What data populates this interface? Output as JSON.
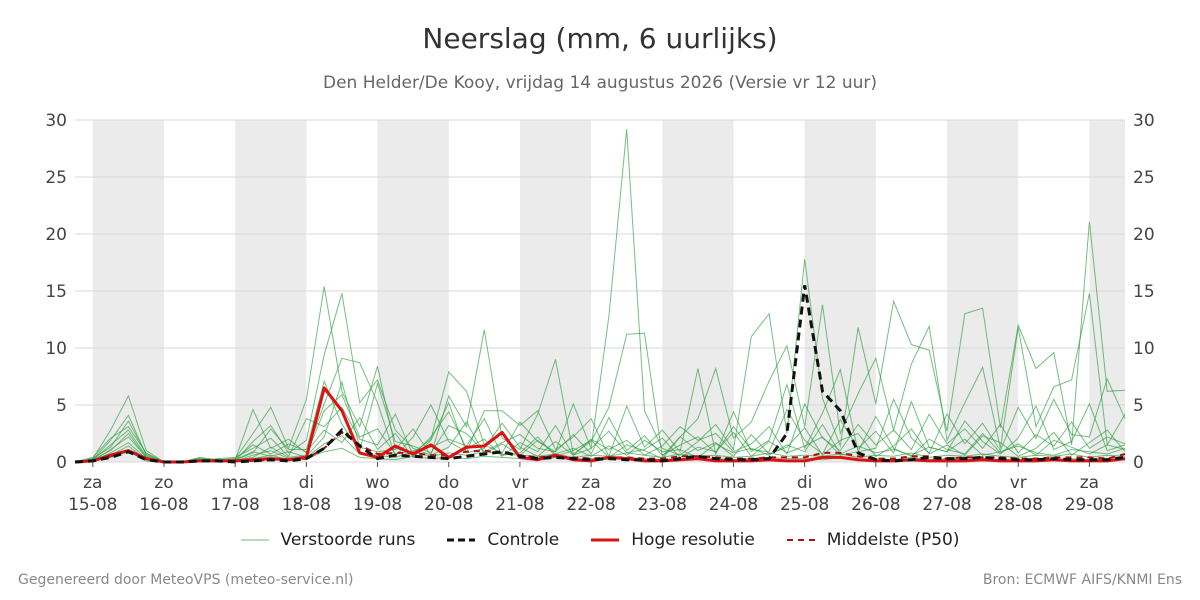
{
  "header": {
    "title": "Neerslag (mm, 6 uurlijks)",
    "subtitle": "Den Helder/De Kooy, vrijdag 14 augustus 2026 (Versie vr 12 uur)"
  },
  "footer": {
    "left": "Gegenereerd door MeteoVPS (meteo-service.nl)",
    "right": "Bron: ECMWF AIFS/KNMI Ens"
  },
  "legend": [
    {
      "key": "ensemble",
      "label": "Verstoorde runs"
    },
    {
      "key": "control",
      "label": "Controle"
    },
    {
      "key": "hires",
      "label": "Hoge resolutie"
    },
    {
      "key": "median",
      "label": "Middelste (P50)"
    }
  ],
  "colors": {
    "ensemble": "#2a9d3a",
    "control": "#111111",
    "hires": "#dd1111",
    "median": "#aa1111",
    "weekend_band": "#ebebeb",
    "grid": "#d8d8d8"
  },
  "chart_data": {
    "type": "line",
    "x_unit": "days since 15-08 00:00, 6-hourly steps",
    "xlim": [
      -0.25,
      14.5
    ],
    "ylim": [
      0,
      30
    ],
    "y_ticks": [
      0,
      5,
      10,
      15,
      20,
      25,
      30
    ],
    "grid": true,
    "legend_position": "bottom",
    "x_ticks": [
      {
        "day": "za",
        "date": "15-08"
      },
      {
        "day": "zo",
        "date": "16-08"
      },
      {
        "day": "ma",
        "date": "17-08"
      },
      {
        "day": "di",
        "date": "18-08"
      },
      {
        "day": "wo",
        "date": "19-08"
      },
      {
        "day": "do",
        "date": "20-08"
      },
      {
        "day": "vr",
        "date": "21-08"
      },
      {
        "day": "za",
        "date": "22-08"
      },
      {
        "day": "zo",
        "date": "23-08"
      },
      {
        "day": "ma",
        "date": "24-08"
      },
      {
        "day": "di",
        "date": "25-08"
      },
      {
        "day": "wo",
        "date": "26-08"
      },
      {
        "day": "do",
        "date": "27-08"
      },
      {
        "day": "vr",
        "date": "28-08"
      },
      {
        "day": "za",
        "date": "29-08"
      }
    ],
    "shaded_bands": [
      [
        0,
        1
      ],
      [
        2,
        3
      ],
      [
        4,
        5
      ],
      [
        6,
        7
      ],
      [
        8,
        9
      ],
      [
        10,
        11
      ],
      [
        12,
        13
      ],
      [
        14,
        14.5
      ]
    ],
    "series": [
      {
        "name": "Hoge resolutie",
        "role": "hires",
        "x": [
          -0.25,
          0,
          0.25,
          0.5,
          0.75,
          1,
          1.25,
          1.5,
          1.75,
          2,
          2.25,
          2.5,
          2.75,
          3,
          3.25,
          3.5,
          3.75,
          4,
          4.25,
          4.5,
          4.75,
          5,
          5.25,
          5.5,
          5.75,
          6,
          6.25,
          6.5,
          6.75,
          7,
          7.25,
          7.5,
          7.75,
          8,
          8.25,
          8.5,
          8.75,
          9,
          9.25,
          9.5,
          9.75,
          10,
          10.25,
          10.5,
          10.75,
          11,
          11.25,
          11.5,
          11.75,
          12,
          12.25,
          12.5,
          12.75,
          13,
          13.25,
          13.5,
          13.75,
          14,
          14.25,
          14.5
        ],
        "values": [
          0,
          0.1,
          0.6,
          1.0,
          0.3,
          0,
          0,
          0.1,
          0.1,
          0.1,
          0.2,
          0.3,
          0.2,
          0.4,
          6.5,
          4.5,
          0.8,
          0.4,
          1.4,
          0.7,
          1.5,
          0.4,
          1.3,
          1.4,
          2.6,
          0.4,
          0.2,
          0.6,
          0.2,
          0.1,
          0.4,
          0.3,
          0.1,
          0.1,
          0.2,
          0.3,
          0.1,
          0.1,
          0.1,
          0.2,
          0.1,
          0.1,
          0.4,
          0.4,
          0.2,
          0.1,
          0.1,
          0.2,
          0.1,
          0.1,
          0.1,
          0.2,
          0.1,
          0.1,
          0.1,
          0.2,
          0.1,
          0.1,
          0.1,
          0.3
        ]
      },
      {
        "name": "Controle",
        "role": "control",
        "x": [
          -0.25,
          0,
          0.25,
          0.5,
          0.75,
          1,
          1.25,
          1.5,
          1.75,
          2,
          2.25,
          2.5,
          2.75,
          3,
          3.25,
          3.5,
          3.75,
          4,
          4.25,
          4.5,
          4.75,
          5,
          5.25,
          5.5,
          5.75,
          6,
          6.25,
          6.5,
          6.75,
          7,
          7.25,
          7.5,
          7.75,
          8,
          8.25,
          8.5,
          8.75,
          9,
          9.25,
          9.5,
          9.75,
          10,
          10.25,
          10.5,
          10.75,
          11,
          11.25,
          11.5,
          11.75,
          12,
          12.25,
          12.5,
          12.75,
          13,
          13.25,
          13.5,
          13.75,
          14,
          14.25,
          14.5
        ],
        "values": [
          0,
          0.1,
          0.4,
          0.9,
          0.2,
          0,
          0,
          0.1,
          0.1,
          0,
          0.1,
          0.2,
          0.1,
          0.3,
          1.2,
          2.8,
          1.4,
          0.3,
          0.6,
          0.5,
          0.4,
          0.3,
          0.5,
          0.7,
          0.9,
          0.5,
          0.3,
          0.4,
          0.3,
          0.2,
          0.3,
          0.2,
          0.2,
          0.1,
          0.3,
          0.5,
          0.3,
          0.2,
          0.2,
          0.3,
          2.5,
          15.5,
          6.2,
          4.5,
          0.8,
          0.2,
          0.1,
          0.2,
          0.4,
          0.3,
          0.3,
          0.4,
          0.3,
          0.2,
          0.2,
          0.3,
          0.2,
          0.2,
          0.2,
          0.4
        ]
      },
      {
        "name": "Middelste (P50)",
        "role": "median",
        "x": [
          -0.25,
          0,
          0.25,
          0.5,
          0.75,
          1,
          1.25,
          1.5,
          1.75,
          2,
          2.25,
          2.5,
          2.75,
          3,
          3.25,
          3.5,
          3.75,
          4,
          4.25,
          4.5,
          4.75,
          5,
          5.25,
          5.5,
          5.75,
          6,
          6.25,
          6.5,
          6.75,
          7,
          7.25,
          7.5,
          7.75,
          8,
          8.25,
          8.5,
          8.75,
          9,
          9.25,
          9.5,
          9.75,
          10,
          10.25,
          10.5,
          10.75,
          11,
          11.25,
          11.5,
          11.75,
          12,
          12.25,
          12.5,
          12.75,
          13,
          13.25,
          13.5,
          13.75,
          14,
          14.25,
          14.5
        ],
        "values": [
          0,
          0.1,
          0.5,
          1.0,
          0.3,
          0,
          0,
          0.1,
          0.1,
          0.1,
          0.1,
          0.2,
          0.2,
          0.3,
          1.2,
          2.6,
          1.5,
          0.7,
          0.8,
          0.8,
          0.6,
          0.6,
          0.9,
          1.0,
          0.8,
          0.6,
          0.4,
          0.5,
          0.4,
          0.3,
          0.4,
          0.4,
          0.3,
          0.3,
          0.5,
          0.5,
          0.4,
          0.3,
          0.3,
          0.4,
          0.4,
          0.4,
          0.8,
          0.8,
          0.5,
          0.3,
          0.3,
          0.5,
          0.5,
          0.3,
          0.4,
          0.4,
          0.4,
          0.3,
          0.3,
          0.4,
          0.4,
          0.4,
          0.3,
          0.7
        ]
      },
      {
        "name": "Verstoorde runs",
        "role": "ensemble",
        "x": [
          -0.25,
          0,
          0.25,
          0.5,
          0.75,
          1,
          1.25,
          1.5,
          1.75,
          2,
          2.25,
          2.5,
          2.75,
          3,
          3.25,
          3.5,
          3.75,
          4,
          4.25,
          4.5,
          4.75,
          5,
          5.25,
          5.5,
          5.75,
          6,
          6.25,
          6.5,
          6.75,
          7,
          7.25,
          7.5,
          7.75,
          8,
          8.25,
          8.5,
          8.75,
          9,
          9.25,
          9.5,
          9.75,
          10,
          10.25,
          10.5,
          10.75,
          11,
          11.25,
          11.5,
          11.75,
          12,
          12.25,
          12.5,
          12.75,
          13,
          13.25,
          13.5,
          13.75,
          14,
          14.25,
          14.5
        ],
        "members": [
          [
            0,
            0.3,
            2.8,
            5.8,
            1.0,
            0,
            0,
            0.2,
            0.1,
            0.3,
            2.5,
            4.8,
            1.2,
            5.5,
            15.4,
            6.2,
            3.1,
            8.4,
            1.2,
            0.8,
            2.0,
            7.9,
            6.2,
            1.5,
            0.8,
            3.5,
            1.8,
            0.9,
            5.1,
            1.2,
            12.8,
            29.2,
            4.5,
            1.2,
            0.6,
            1.8,
            3.3,
            1.1,
            11.0,
            13.0,
            2.5,
            17.8,
            5.6,
            1.4,
            11.8,
            5.1,
            14.1,
            10.3,
            9.8,
            2.7,
            13.0,
            13.5,
            3.0,
            12.0,
            8.2,
            9.6,
            1.5,
            21.1,
            6.2,
            6.3
          ],
          [
            0,
            0.2,
            1.9,
            4.1,
            0.6,
            0,
            0,
            0.4,
            0.2,
            0.1,
            1.8,
            3.2,
            0.8,
            1.9,
            9.4,
            14.8,
            5.2,
            7.2,
            2.8,
            1.2,
            0.6,
            5.8,
            3.1,
            11.6,
            2.1,
            1.1,
            4.2,
            9.0,
            0.7,
            1.8,
            4.8,
            11.2,
            11.3,
            0.5,
            2.2,
            3.8,
            8.2,
            2.1,
            3.5,
            7.1,
            10.2,
            3.1,
            13.8,
            2.5,
            6.0,
            9.1,
            2.8,
            8.6,
            11.9,
            1.9,
            5.2,
            8.3,
            1.2,
            11.8,
            3.1,
            6.6,
            7.2,
            14.8,
            1.5,
            4.2
          ],
          [
            0,
            0.4,
            2.1,
            3.1,
            0.8,
            0,
            0,
            0.3,
            0.2,
            0.2,
            4.6,
            1.2,
            2.0,
            0.8,
            5.1,
            9.1,
            8.7,
            5.2,
            0.5,
            2.2,
            5.0,
            1.8,
            0.9,
            4.5,
            4.5,
            3.2,
            4.5,
            1.1,
            2.2,
            3.8,
            0.5,
            4.9,
            1.3,
            2.8,
            0.9,
            8.2,
            0.7,
            4.4,
            0.9,
            1.9,
            6.8,
            1.2,
            4.3,
            8.1,
            0.9,
            1.2,
            5.5,
            2.1,
            0.8,
            4.2,
            1.6,
            3.4,
            1.0,
            4.8,
            2.1,
            5.5,
            2.4,
            2.2,
            7.3,
            3.8
          ],
          [
            0,
            0.1,
            1.1,
            2.2,
            0.4,
            0,
            0,
            0.1,
            0.3,
            0.4,
            1.2,
            2.1,
            0.5,
            3.8,
            3.1,
            4.8,
            2.0,
            1.5,
            4.2,
            0.6,
            2.2,
            4.4,
            1.2,
            2.0,
            0.5,
            1.7,
            0.9,
            3.2,
            0.6,
            2.0,
            1.1,
            1.9,
            0.6,
            1.4,
            3.1,
            1.9,
            2.5,
            0.9,
            1.6,
            3.1,
            0.7,
            5.1,
            2.1,
            1.0,
            3.3,
            1.5,
            2.8,
            1.1,
            4.2,
            1.6,
            2.9,
            1.2,
            3.3,
            0.8,
            2.4,
            1.4,
            3.5,
            1.2,
            2.2,
            1.6
          ],
          [
            0,
            0.2,
            1.5,
            2.8,
            0.5,
            0,
            0,
            0.2,
            0.1,
            0.2,
            0.8,
            2.9,
            1.1,
            1.1,
            7.1,
            3.3,
            1.0,
            6.9,
            1.8,
            1.4,
            0.8,
            3.2,
            2.5,
            0.9,
            1.7,
            2.4,
            1.2,
            0.9,
            2.4,
            0.7,
            3.9,
            1.0,
            2.3,
            0.6,
            1.5,
            2.2,
            0.8,
            3.1,
            1.1,
            0.9,
            4.6,
            1.9,
            0.7,
            3.7,
            1.2,
            2.7,
            0.8,
            5.3,
            1.3,
            0.9,
            3.6,
            1.8,
            0.7,
            2.1,
            4.9,
            1.1,
            1.8,
            5.1,
            1.0,
            1.5
          ],
          [
            0,
            0.1,
            0.8,
            1.7,
            0.3,
            0,
            0,
            0.1,
            0.2,
            0.1,
            0.4,
            1.3,
            0.4,
            0.6,
            4.5,
            5.9,
            2.2,
            2.9,
            0.7,
            1.0,
            1.3,
            2.0,
            1.4,
            3.8,
            0.6,
            0.8,
            2.2,
            0.5,
            1.0,
            1.9,
            0.4,
            1.5,
            1.0,
            0.3,
            2.2,
            1.0,
            1.7,
            0.5,
            2.4,
            0.7,
            1.3,
            3.0,
            0.6,
            1.9,
            2.5,
            0.5,
            1.4,
            2.9,
            0.7,
            1.5,
            0.6,
            2.3,
            1.7,
            0.5,
            1.2,
            2.6,
            0.6,
            1.7,
            2.8,
            0.9
          ],
          [
            0,
            0.3,
            1.3,
            3.6,
            0.7,
            0,
            0,
            0.2,
            0.2,
            0.3,
            1.5,
            0.7,
            1.6,
            0.9,
            2.8,
            1.7,
            3.9,
            1.1,
            2.5,
            0.4,
            1.9,
            5.2,
            0.8,
            1.2,
            3.4,
            1.3,
            0.5,
            1.8,
            0.6,
            1.2,
            2.7,
            0.8,
            1.1,
            2.1,
            0.4,
            1.3,
            0.9,
            2.6,
            0.5,
            1.8,
            0.8,
            1.4,
            2.2,
            0.6,
            0.9,
            4.0,
            1.2,
            0.5,
            2.0,
            1.1,
            0.7,
            2.5,
            0.8,
            1.6,
            0.6,
            1.9,
            1.3,
            0.7,
            1.5,
            1.1
          ],
          [
            0,
            0.1,
            0.6,
            1.4,
            0.2,
            0,
            0,
            0.1,
            0.1,
            0.1,
            0.6,
            1.0,
            0.3,
            0.5,
            2.2,
            7.0,
            1.3,
            0.9,
            1.1,
            2.9,
            0.6,
            1.3,
            3.5,
            0.7,
            1.6,
            0.6,
            1.9,
            0.7,
            1.2,
            0.5,
            1.4,
            0.6,
            1.9,
            0.9,
            1.1,
            0.4,
            1.6,
            0.8,
            1.2,
            0.6,
            1.5,
            0.9,
            3.3,
            0.7,
            1.4,
            0.8,
            1.1,
            0.6,
            1.3,
            0.9,
            2.0,
            0.6,
            0.9,
            1.4,
            0.8,
            0.6,
            1.1,
            0.9,
            0.7,
            1.2
          ],
          [
            0,
            0.2,
            1.0,
            2.5,
            0.4,
            0,
            0,
            0.3,
            0.1,
            0.2,
            0.9,
            0.5,
            0.9,
            0.4,
            1.6,
            2.3,
            0.7,
            0.6,
            0.4,
            0.9,
            0.5,
            0.8,
            0.6,
            0.9,
            0.7,
            0.6,
            0.5,
            0.7,
            0.4,
            0.6,
            0.5,
            0.8,
            0.6,
            0.4,
            0.7,
            0.5,
            0.6,
            0.4,
            0.5,
            0.8,
            0.5,
            0.6,
            0.5,
            0.7,
            0.4,
            0.6,
            0.5,
            0.8,
            0.4,
            0.6,
            0.5,
            0.7,
            0.5,
            0.4,
            0.6,
            0.5,
            0.7,
            0.4,
            0.6,
            0.5
          ],
          [
            0,
            0.1,
            0.4,
            0.9,
            0.1,
            0,
            0,
            0.1,
            0.1,
            0.1,
            0.3,
            0.6,
            0.2,
            0.3,
            0.9,
            1.2,
            0.4,
            0.3,
            0.2,
            0.5,
            0.3,
            0.4,
            0.3,
            0.5,
            0.4,
            0.3,
            0.2,
            0.4,
            0.2,
            0.3,
            0.2,
            0.4,
            0.3,
            0.2,
            0.3,
            0.2,
            0.3,
            0.2,
            0.3,
            0.4,
            0.3,
            0.3,
            0.2,
            0.4,
            0.2,
            0.3,
            0.2,
            0.4,
            0.2,
            0.3,
            0.2,
            0.3,
            0.2,
            0.2,
            0.3,
            0.2,
            0.3,
            0.2,
            0.3,
            0.2
          ]
        ]
      }
    ]
  }
}
